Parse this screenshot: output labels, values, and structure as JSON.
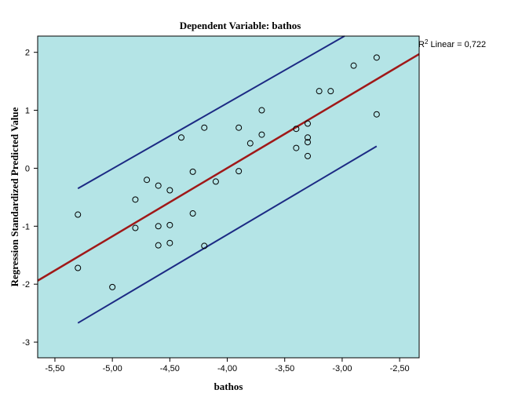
{
  "chart_data": {
    "type": "scatter",
    "title": "Dependent Variable: bathos",
    "xlabel": "bathos",
    "ylabel": "Regression Standardized Predicted Value",
    "xlim": [
      -5.65,
      -2.33
    ],
    "ylim": [
      -3.27,
      2.28
    ],
    "xticks": [
      -5.5,
      -5.0,
      -4.5,
      -4.0,
      -3.5,
      -3.0,
      -2.5
    ],
    "xtick_labels": [
      "-5,50",
      "-5,00",
      "-4,50",
      "-4,00",
      "-3,50",
      "-3,00",
      "-2,50"
    ],
    "yticks": [
      2,
      1,
      0,
      -1,
      -2,
      -3
    ],
    "ytick_labels": [
      "2",
      "1",
      "0",
      "-1",
      "-2",
      "-3"
    ],
    "grid": false,
    "annotation": {
      "prefix": "R",
      "superscript": "2",
      "text": " Linear = 0,722"
    },
    "colors": {
      "plot_background": "#b4e4e6",
      "fit_line": "#a01818",
      "ci_lines": "#1c2a84",
      "points": "#000000"
    },
    "points": [
      {
        "x": -5.3,
        "y": -0.8
      },
      {
        "x": -5.3,
        "y": -1.72
      },
      {
        "x": -5.0,
        "y": -2.05
      },
      {
        "x": -4.8,
        "y": -0.54
      },
      {
        "x": -4.8,
        "y": -1.03
      },
      {
        "x": -4.7,
        "y": -0.2
      },
      {
        "x": -4.6,
        "y": -0.3
      },
      {
        "x": -4.6,
        "y": -1.0
      },
      {
        "x": -4.6,
        "y": -1.33
      },
      {
        "x": -4.5,
        "y": -0.38
      },
      {
        "x": -4.5,
        "y": -0.98
      },
      {
        "x": -4.5,
        "y": -1.29
      },
      {
        "x": -4.4,
        "y": 0.53
      },
      {
        "x": -4.3,
        "y": -0.06
      },
      {
        "x": -4.3,
        "y": -0.78
      },
      {
        "x": -4.2,
        "y": 0.7
      },
      {
        "x": -4.2,
        "y": -1.34
      },
      {
        "x": -4.1,
        "y": -0.23
      },
      {
        "x": -3.9,
        "y": 0.7
      },
      {
        "x": -3.9,
        "y": -0.05
      },
      {
        "x": -3.8,
        "y": 0.43
      },
      {
        "x": -3.7,
        "y": 1.0
      },
      {
        "x": -3.7,
        "y": 0.58
      },
      {
        "x": -3.4,
        "y": 0.68
      },
      {
        "x": -3.4,
        "y": 0.35
      },
      {
        "x": -3.3,
        "y": 0.77
      },
      {
        "x": -3.3,
        "y": 0.53
      },
      {
        "x": -3.3,
        "y": 0.45
      },
      {
        "x": -3.3,
        "y": 0.21
      },
      {
        "x": -3.2,
        "y": 1.33
      },
      {
        "x": -3.1,
        "y": 1.33
      },
      {
        "x": -2.9,
        "y": 1.77
      },
      {
        "x": -2.7,
        "y": 1.91
      },
      {
        "x": -2.7,
        "y": 0.93
      }
    ],
    "fit_line": {
      "x": [
        -5.65,
        -2.33
      ],
      "y": [
        -1.94,
        1.97
      ]
    },
    "ci_upper": {
      "x": [
        -5.3,
        -2.98
      ],
      "y": [
        -0.35,
        2.28
      ]
    },
    "ci_lower": {
      "x": [
        -5.3,
        -2.7
      ],
      "y": [
        -2.67,
        0.38
      ]
    }
  }
}
